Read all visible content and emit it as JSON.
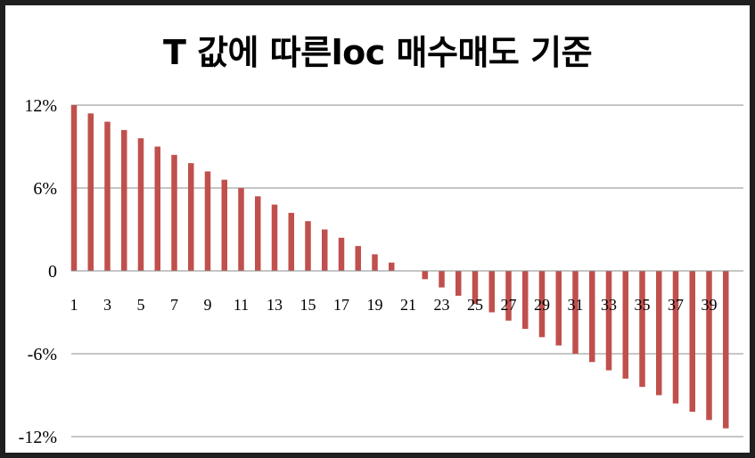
{
  "chart_data": {
    "type": "bar",
    "title": "T 값에 따른loc 매수매도 기준",
    "xlabel": "",
    "ylabel": "",
    "categories": [
      1,
      2,
      3,
      4,
      5,
      6,
      7,
      8,
      9,
      10,
      11,
      12,
      13,
      14,
      15,
      16,
      17,
      18,
      19,
      20,
      21,
      22,
      23,
      24,
      25,
      26,
      27,
      28,
      29,
      30,
      31,
      32,
      33,
      34,
      35,
      36,
      37,
      38,
      39,
      40
    ],
    "x_tick_labels": [
      "1",
      "3",
      "5",
      "7",
      "9",
      "11",
      "13",
      "15",
      "17",
      "19",
      "21",
      "23",
      "25",
      "27",
      "29",
      "31",
      "33",
      "35",
      "37",
      "39"
    ],
    "y_tick_labels": [
      "12%",
      "6%",
      "0",
      "-6%",
      "-12%"
    ],
    "values": [
      12.0,
      11.4,
      10.8,
      10.2,
      9.6,
      9.0,
      8.4,
      7.8,
      7.2,
      6.6,
      6.0,
      5.4,
      4.8,
      4.2,
      3.6,
      3.0,
      2.4,
      1.8,
      1.2,
      0.6,
      0.0,
      -0.6,
      -1.2,
      -1.8,
      -2.4,
      -3.0,
      -3.6,
      -4.2,
      -4.8,
      -5.4,
      -6.0,
      -6.6,
      -7.2,
      -7.8,
      -8.4,
      -9.0,
      -9.6,
      -10.2,
      -10.8,
      -11.4
    ],
    "ylim": [
      -12,
      12
    ],
    "y_ticks": [
      12,
      6,
      0,
      -6,
      -12
    ],
    "grid": true,
    "legend": "none",
    "bar_color": "#c0504d",
    "grid_color": "#8c8c8c"
  }
}
